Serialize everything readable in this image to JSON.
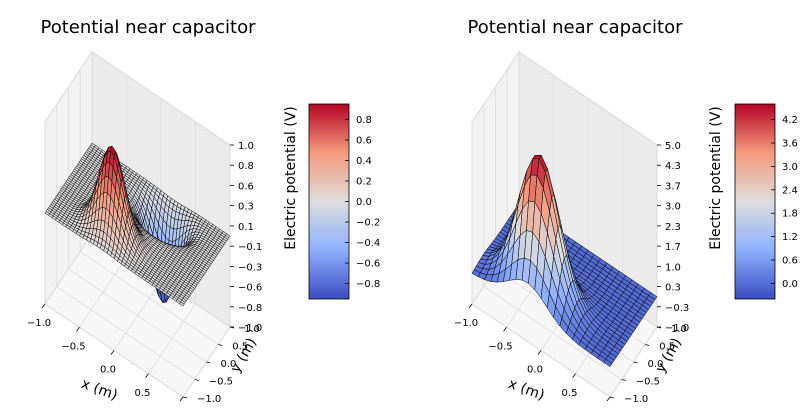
{
  "chart_data": [
    {
      "type": "surface3d",
      "title": "Potential near capacitor",
      "xlabel": "x (m)",
      "ylabel": "y (m)",
      "zlabel": "Electric potential (V)",
      "xlim": [
        -1.0,
        1.0
      ],
      "ylim": [
        -1.0,
        1.0
      ],
      "zlim": [
        -1.0,
        1.0
      ],
      "x_ticks": [
        "−1.0",
        "−0.5",
        "0.0",
        "0.5",
        "1.0"
      ],
      "y_ticks": [
        "−1.0",
        "−0.5",
        "0.0",
        "0.5",
        "1.0"
      ],
      "z_ticks": [
        "−1.0",
        "−0.8",
        "−0.6",
        "−0.3",
        "−0.1",
        "0.1",
        "0.3",
        "0.6",
        "0.8",
        "1.0"
      ],
      "colorbar": {
        "colormap": "coolwarm",
        "range": [
          -0.95,
          0.95
        ],
        "ticks": [
          "−0.8",
          "−0.6",
          "−0.4",
          "−0.2",
          "0.0",
          "0.2",
          "0.4",
          "0.6",
          "0.8"
        ],
        "tick_values": [
          -0.8,
          -0.6,
          -0.4,
          -0.2,
          0.0,
          0.2,
          0.4,
          0.6,
          0.8
        ]
      },
      "mesh": "fine",
      "surface": {
        "description_values": "positive peak near (x=-0.2, y=-0.5) reaching ~0.95 V, negative peak near (x=0.2, y=0.5) reaching ~-0.95 V, zero elsewhere",
        "peak_positive": {
          "x": -0.2,
          "y": -0.5,
          "z": 0.95
        },
        "peak_negative": {
          "x": 0.2,
          "y": 0.5,
          "z": -0.95
        }
      }
    },
    {
      "type": "surface3d",
      "title": "Potential near capacitor",
      "xlabel": "x (m)",
      "ylabel": "y (m)",
      "zlabel": "Electric potential (V)",
      "xlim": [
        -1.0,
        1.0
      ],
      "ylim": [
        -1.0,
        1.0
      ],
      "zlim": [
        -1.0,
        5.0
      ],
      "x_ticks": [
        "−1.0",
        "−0.5",
        "0.0",
        "0.5",
        "1.0"
      ],
      "y_ticks": [
        "−1.0",
        "−0.5",
        "0.0",
        "0.5",
        "1.0"
      ],
      "z_ticks": [
        "−1.0",
        "−0.3",
        "0.3",
        "1.0",
        "1.7",
        "2.3",
        "3.0",
        "3.7",
        "4.3",
        "5.0"
      ],
      "colorbar": {
        "colormap": "coolwarm",
        "range": [
          -0.4,
          4.6
        ],
        "ticks": [
          "0.0",
          "0.6",
          "1.2",
          "1.8",
          "2.4",
          "3.0",
          "3.6",
          "4.2"
        ],
        "tick_values": [
          0.0,
          0.6,
          1.2,
          1.8,
          2.4,
          3.0,
          3.6,
          4.2
        ]
      },
      "mesh": "coarse",
      "surface": {
        "peak_positive": {
          "x": -0.2,
          "y": -0.5,
          "z": 4.6
        },
        "base": 0.0
      }
    }
  ]
}
